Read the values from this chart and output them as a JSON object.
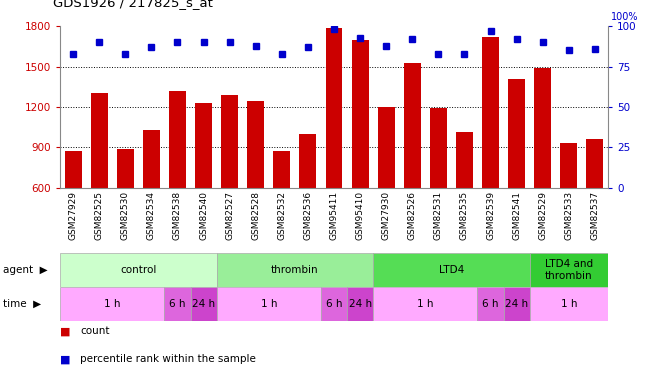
{
  "title": "GDS1926 / 217825_s_at",
  "samples": [
    "GSM27929",
    "GSM82525",
    "GSM82530",
    "GSM82534",
    "GSM82538",
    "GSM82540",
    "GSM82527",
    "GSM82528",
    "GSM82532",
    "GSM82536",
    "GSM95411",
    "GSM95410",
    "GSM27930",
    "GSM82526",
    "GSM82531",
    "GSM82535",
    "GSM82539",
    "GSM82541",
    "GSM82529",
    "GSM82533",
    "GSM82537"
  ],
  "counts": [
    870,
    1300,
    890,
    1030,
    1320,
    1230,
    1290,
    1240,
    870,
    1000,
    1790,
    1700,
    1200,
    1530,
    1190,
    1010,
    1720,
    1410,
    1490,
    930,
    960
  ],
  "percentiles": [
    83,
    90,
    83,
    87,
    90,
    90,
    90,
    88,
    83,
    87,
    98,
    93,
    88,
    92,
    83,
    83,
    97,
    92,
    90,
    85,
    86
  ],
  "ylim_left": [
    600,
    1800
  ],
  "ylim_right": [
    0,
    100
  ],
  "yticks_left": [
    600,
    900,
    1200,
    1500,
    1800
  ],
  "yticks_right": [
    0,
    25,
    50,
    75,
    100
  ],
  "bar_color": "#cc0000",
  "dot_color": "#0000cc",
  "grid_color": "#000000",
  "tick_color_left": "#cc0000",
  "tick_color_right": "#0000cc",
  "agent_groups": [
    {
      "label": "control",
      "start": 0,
      "end": 6,
      "color": "#ccffcc"
    },
    {
      "label": "thrombin",
      "start": 6,
      "end": 12,
      "color": "#99ee99"
    },
    {
      "label": "LTD4",
      "start": 12,
      "end": 18,
      "color": "#55dd55"
    },
    {
      "label": "LTD4 and\nthrombin",
      "start": 18,
      "end": 21,
      "color": "#33cc33"
    }
  ],
  "time_groups": [
    {
      "label": "1 h",
      "start": 0,
      "end": 4,
      "color": "#ffaaff"
    },
    {
      "label": "6 h",
      "start": 4,
      "end": 5,
      "color": "#dd66dd"
    },
    {
      "label": "24 h",
      "start": 5,
      "end": 6,
      "color": "#cc44cc"
    },
    {
      "label": "1 h",
      "start": 6,
      "end": 10,
      "color": "#ffaaff"
    },
    {
      "label": "6 h",
      "start": 10,
      "end": 11,
      "color": "#dd66dd"
    },
    {
      "label": "24 h",
      "start": 11,
      "end": 12,
      "color": "#cc44cc"
    },
    {
      "label": "1 h",
      "start": 12,
      "end": 16,
      "color": "#ffaaff"
    },
    {
      "label": "6 h",
      "start": 16,
      "end": 17,
      "color": "#dd66dd"
    },
    {
      "label": "24 h",
      "start": 17,
      "end": 18,
      "color": "#cc44cc"
    },
    {
      "label": "1 h",
      "start": 18,
      "end": 21,
      "color": "#ffaaff"
    }
  ],
  "legend_items": [
    {
      "label": "count",
      "color": "#cc0000"
    },
    {
      "label": "percentile rank within the sample",
      "color": "#0000cc"
    }
  ],
  "bg_color": "#ffffff"
}
